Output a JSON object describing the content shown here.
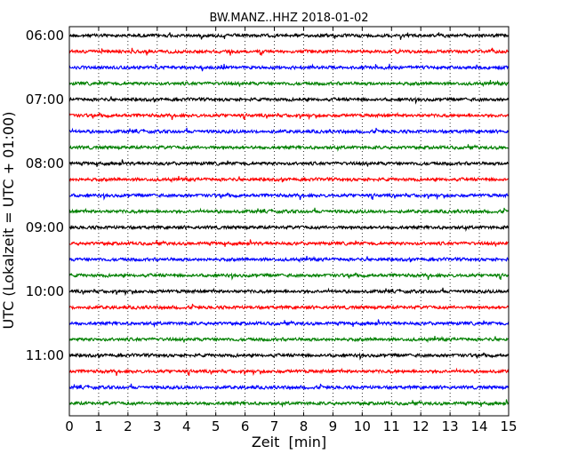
{
  "chart_data": {
    "type": "line",
    "title": "BW.MANZ..HHZ 2018-01-02",
    "xlabel": "Zeit  [min]",
    "ylabel": "UTC (Lokalzeit = UTC + 01:00)",
    "xlim": [
      0,
      15
    ],
    "x_ticks": [
      "0",
      "1",
      "2",
      "3",
      "4",
      "5",
      "6",
      "7",
      "8",
      "9",
      "10",
      "11",
      "12",
      "13",
      "14",
      "15"
    ],
    "y_ticks": [
      "06:00",
      "07:00",
      "08:00",
      "09:00",
      "10:00",
      "11:00"
    ],
    "grid": "vertical dotted",
    "trace_colors": [
      "#000000",
      "#ff0000",
      "#0000ff",
      "#008000"
    ],
    "traces": [
      {
        "start": "06:00",
        "color": "#000000"
      },
      {
        "start": "06:15",
        "color": "#ff0000"
      },
      {
        "start": "06:30",
        "color": "#0000ff"
      },
      {
        "start": "06:45",
        "color": "#008000"
      },
      {
        "start": "07:00",
        "color": "#000000"
      },
      {
        "start": "07:15",
        "color": "#ff0000"
      },
      {
        "start": "07:30",
        "color": "#0000ff"
      },
      {
        "start": "07:45",
        "color": "#008000"
      },
      {
        "start": "08:00",
        "color": "#000000"
      },
      {
        "start": "08:15",
        "color": "#ff0000"
      },
      {
        "start": "08:30",
        "color": "#0000ff"
      },
      {
        "start": "08:45",
        "color": "#008000"
      },
      {
        "start": "09:00",
        "color": "#000000"
      },
      {
        "start": "09:15",
        "color": "#ff0000"
      },
      {
        "start": "09:30",
        "color": "#0000ff"
      },
      {
        "start": "09:45",
        "color": "#008000"
      },
      {
        "start": "10:00",
        "color": "#000000"
      },
      {
        "start": "10:15",
        "color": "#ff0000"
      },
      {
        "start": "10:30",
        "color": "#0000ff"
      },
      {
        "start": "10:45",
        "color": "#008000"
      },
      {
        "start": "11:00",
        "color": "#000000"
      },
      {
        "start": "11:15",
        "color": "#ff0000"
      },
      {
        "start": "11:30",
        "color": "#0000ff"
      },
      {
        "start": "11:45",
        "color": "#008000"
      }
    ]
  }
}
